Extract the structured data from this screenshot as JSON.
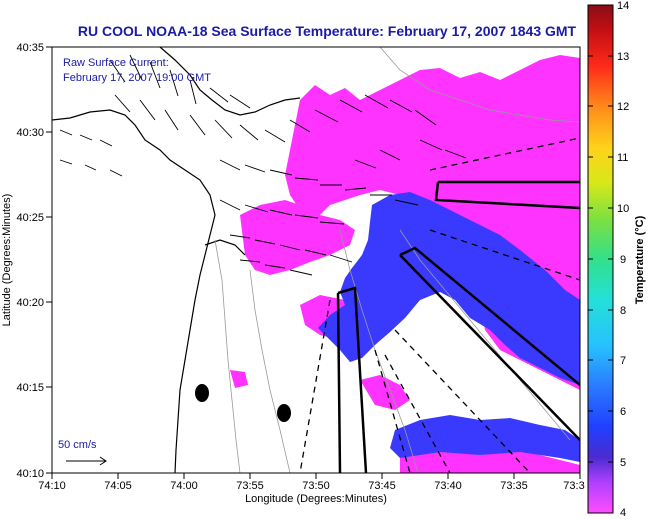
{
  "map": {
    "title": "RU COOL  NOAA-18  Sea Surface Temperature:  February 17, 2007 1843 GMT",
    "current_label": "Raw Surface Current:",
    "current_time": "February 17, 2007 19:00 GMT",
    "scale_label": "50 cm/s",
    "xlabel": "Longitude (Degrees:Minutes)",
    "ylabel": "Latitude (Degrees:Minutes)",
    "x_ticks": [
      "74:10",
      "74:05",
      "74:00",
      "73:55",
      "73:50",
      "73:45",
      "73:40",
      "73:35",
      "73:3"
    ],
    "y_ticks": [
      "40:35",
      "40:30",
      "40:25",
      "40:20",
      "40:15",
      "40:10"
    ],
    "colorbar": {
      "label": "Temperature (°C)",
      "ticks": [
        "14",
        "13",
        "12",
        "11",
        "10",
        "9",
        "8",
        "7",
        "6",
        "5",
        "4"
      ],
      "min": 4,
      "max": 14
    },
    "colors": {
      "title_blue": "#1a1aa6",
      "sst_cold": "#3a3aff",
      "sst_mid": "#6a3ae0",
      "sst_warm": "#ff33ff",
      "land": "#ffffff",
      "vector": "#000000",
      "contour": "#999999"
    }
  }
}
